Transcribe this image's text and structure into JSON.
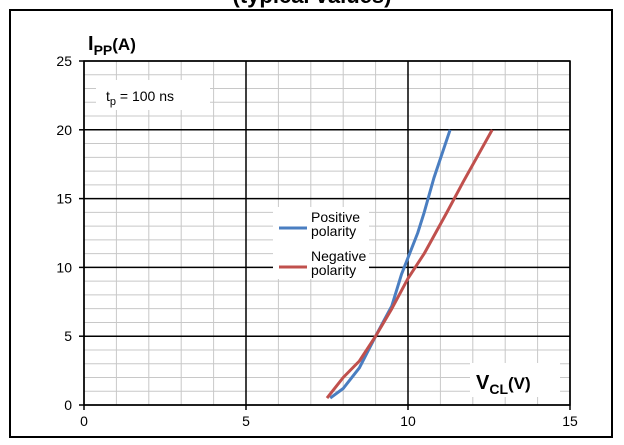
{
  "header": {
    "title_fragment": "(typical values)"
  },
  "chart_data": {
    "type": "line",
    "x_unit_label": {
      "main": "V",
      "sub": "CL",
      "unit": "(V)"
    },
    "y_unit_label": {
      "main": "I",
      "sub": "PP",
      "unit": "(A)"
    },
    "annotation": {
      "main": "t",
      "sub": "p",
      "rest": " = 100 ns"
    },
    "xlim": [
      0,
      15
    ],
    "ylim": [
      0,
      25
    ],
    "xticks": [
      0,
      5,
      10,
      15
    ],
    "yticks": [
      0,
      5,
      10,
      15,
      20,
      25
    ],
    "grid": true,
    "legend_position": "center",
    "series": [
      {
        "name": "Positive polarity",
        "legend_lines": [
          "Positive",
          "polarity"
        ],
        "color": "#4a7ec1",
        "x": [
          7.6,
          8.0,
          8.5,
          9.0,
          9.5,
          9.8,
          10.3,
          10.5,
          10.8,
          11.3
        ],
        "y": [
          0.5,
          1.2,
          2.7,
          5.0,
          7.2,
          9.5,
          12.5,
          14.0,
          16.5,
          20.0
        ]
      },
      {
        "name": "Negative polarity",
        "legend_lines": [
          "Negative",
          "polarity"
        ],
        "color": "#c0504d",
        "x": [
          7.5,
          8.0,
          8.5,
          9.0,
          9.5,
          10.0,
          10.5,
          11.2,
          11.7,
          12.6
        ],
        "y": [
          0.5,
          2.0,
          3.2,
          5.0,
          7.0,
          9.2,
          11.0,
          14.0,
          16.2,
          20.0
        ]
      }
    ]
  }
}
